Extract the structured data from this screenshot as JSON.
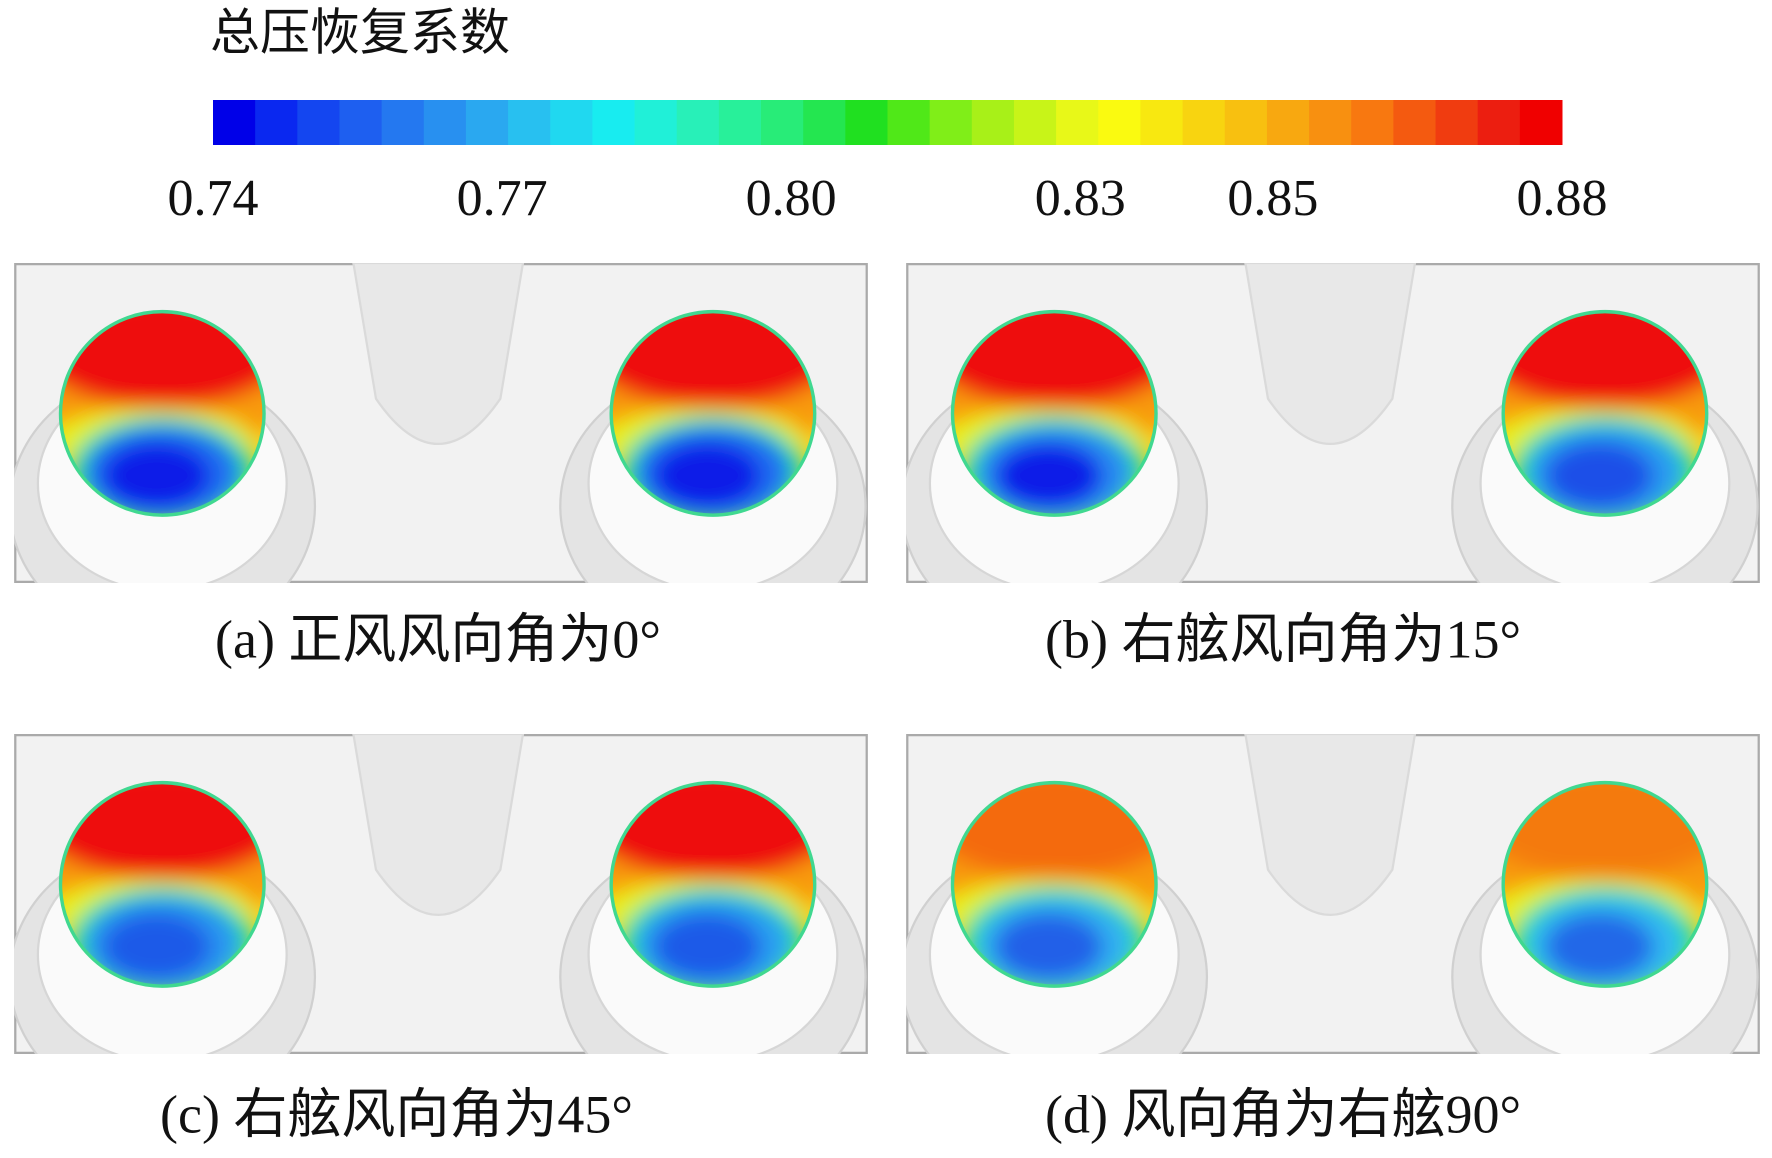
{
  "colorbar": {
    "title": "总压恢复系数",
    "lim": [
      0.74,
      0.88
    ],
    "ticks": [
      0.74,
      0.77,
      {
        "value": 0.8,
        "label": "0.80"
      },
      0.83,
      0.85,
      0.88
    ],
    "colors": [
      "#0000e8",
      "#0a28f0",
      "#1446f0",
      "#1e5ff0",
      "#2478f0",
      "#2890f0",
      "#2aa8f0",
      "#28c0f0",
      "#20d8f0",
      "#18ecf0",
      "#20f0d8",
      "#28f0b8",
      "#28f09a",
      "#28ec78",
      "#24e650",
      "#20e020",
      "#50e818",
      "#80ee18",
      "#a8f018",
      "#c8f418",
      "#e8f818",
      "#fafa10",
      "#f8e810",
      "#f8d410",
      "#f8c010",
      "#f8a810",
      "#f89010",
      "#f87810",
      "#f45a10",
      "#f03c10",
      "#ec1e10",
      "#f00000"
    ]
  },
  "panels": [
    {
      "caption": "(a) 正风风向角为0°"
    },
    {
      "caption": "(b) 右舷风向角为15°"
    },
    {
      "caption": "(c) 右舷风向角为45°"
    },
    {
      "caption": "(d) 风向角为右舷90°"
    }
  ]
}
